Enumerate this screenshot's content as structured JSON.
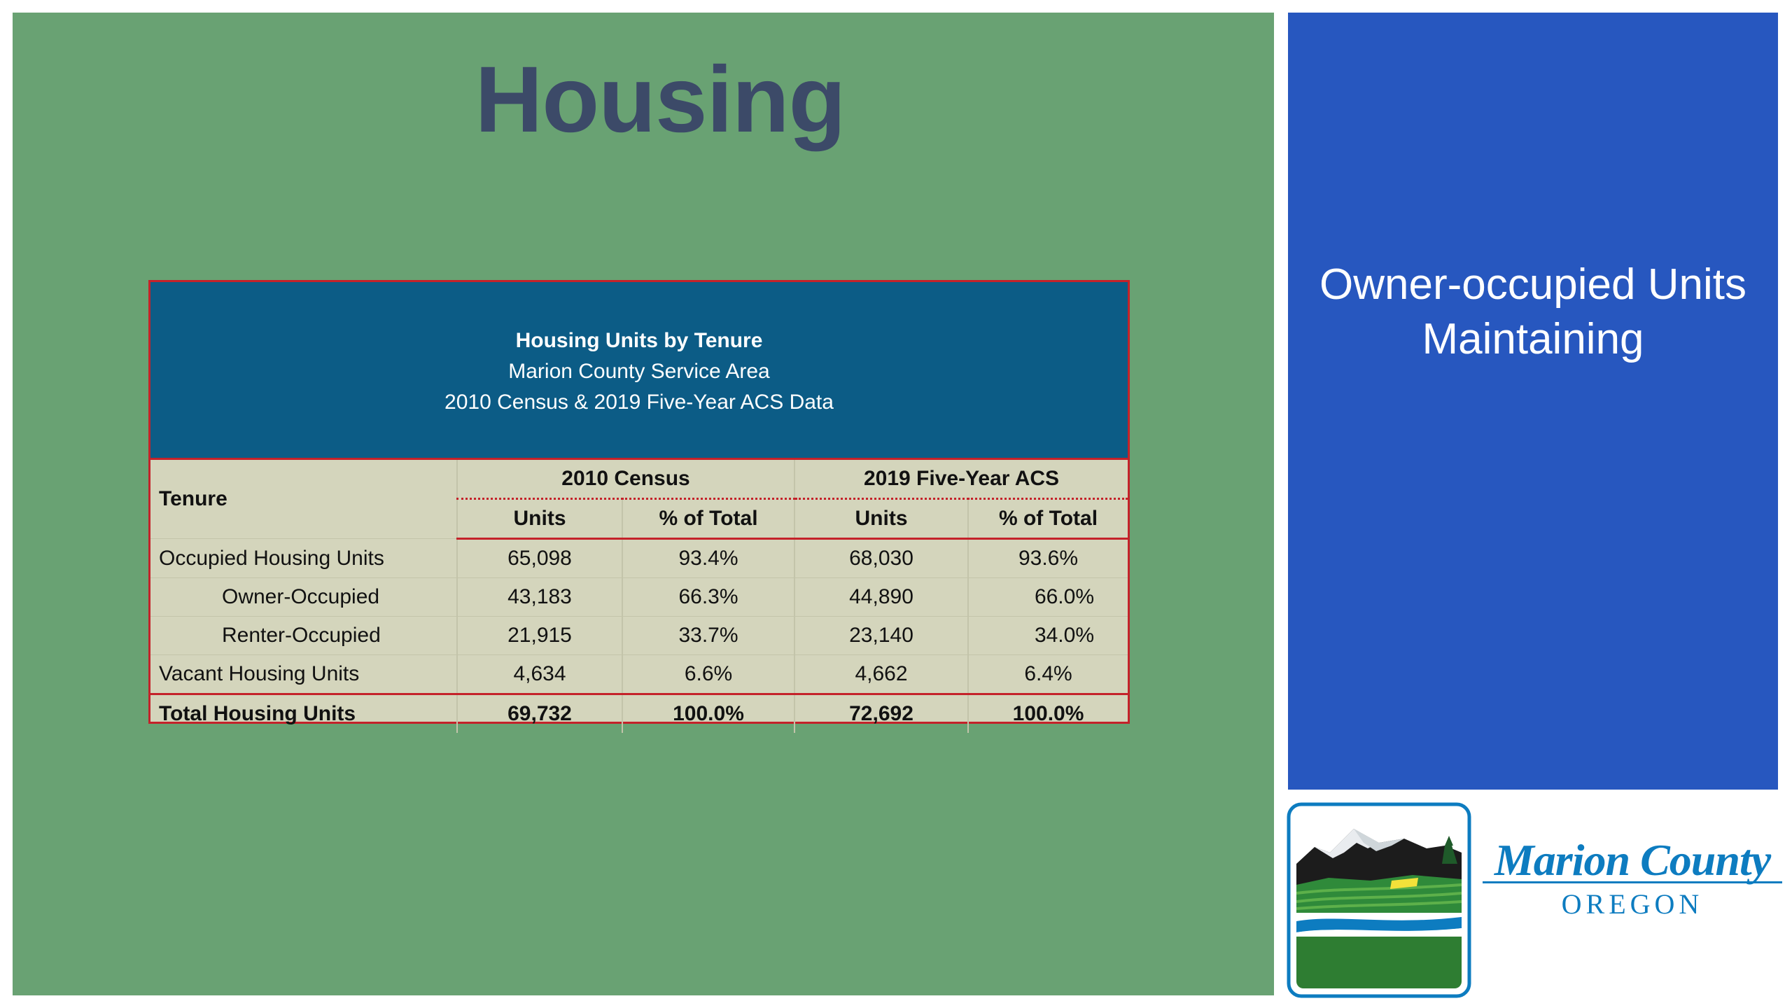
{
  "slide": {
    "title": "Housing"
  },
  "table": {
    "title": "Housing Units by Tenure",
    "subtitle": "Marion County Service Area",
    "source": "2010 Census & 2019 Five-Year ACS Data",
    "tenure_header": "Tenure",
    "groups": [
      "2010 Census",
      "2019 Five-Year ACS"
    ],
    "subheaders": [
      "Units",
      "% of Total",
      "Units",
      "% of Total"
    ],
    "rows": [
      {
        "label": "Occupied Housing Units",
        "values": [
          "65,098",
          "93.4%",
          "68,030",
          "93.6%"
        ]
      },
      {
        "label": "Owner-Occupied",
        "values": [
          "43,183",
          "66.3%",
          "44,890",
          "66.0%"
        ]
      },
      {
        "label": "Renter-Occupied",
        "values": [
          "21,915",
          "33.7%",
          "23,140",
          "34.0%"
        ]
      },
      {
        "label": "Vacant Housing Units",
        "values": [
          "4,634",
          "6.6%",
          "4,662",
          "6.4%"
        ]
      },
      {
        "label": "Total Housing Units",
        "values": [
          "69,732",
          "100.0%",
          "72,692",
          "100.0%"
        ]
      }
    ]
  },
  "side": {
    "text_line1": "Owner-occupied Units",
    "text_line2": "Maintaining"
  },
  "logo": {
    "name": "Marion County",
    "state": "OREGON"
  },
  "colors": {
    "main_background": "#69a273",
    "side_background": "#2757bf",
    "title_color": "#3c4a68",
    "table_header_background": "#0c5c86",
    "table_body_background": "#d4d5bc",
    "table_border": "#c4222a",
    "logo_blue": "#0d7cc0"
  }
}
